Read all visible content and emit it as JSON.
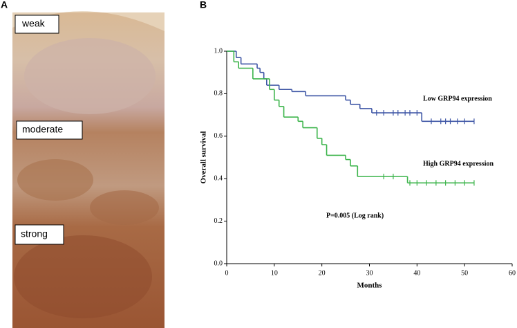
{
  "panel_labels": [
    "A",
    "B"
  ],
  "image_labels": [
    "weak",
    "moderate",
    "strong"
  ],
  "chart_data": {
    "type": "step",
    "xlabel": "Months",
    "ylabel": "Overall survival",
    "xlim": [
      0,
      60
    ],
    "xticks": [
      0,
      10,
      20,
      30,
      40,
      50,
      60
    ],
    "ylim": [
      0,
      1
    ],
    "yticks": [
      {
        "value": 0,
        "label": "0.0"
      },
      0.2,
      0.4,
      0.6,
      0.8,
      {
        "value": 1,
        "label": "1.0"
      }
    ],
    "series": [
      {
        "name": "Low GRP94 expression",
        "color": "#3d55a5",
        "x": [
          0,
          2,
          3,
          6.4,
          7,
          7.8,
          8.4,
          11,
          13.7,
          16.6,
          25,
          26,
          28,
          30.5,
          41,
          52
        ],
        "values": [
          1.0,
          0.97,
          0.94,
          0.92,
          0.9,
          0.87,
          0.84,
          0.82,
          0.81,
          0.79,
          0.77,
          0.75,
          0.73,
          0.71,
          0.67,
          0.67
        ],
        "censored": [
          31.5,
          33,
          35,
          36,
          37.5,
          38.5,
          40,
          43,
          45,
          46,
          47,
          48.5,
          50,
          52
        ]
      },
      {
        "name": "High GRP94 expression",
        "color": "#3cb44b",
        "x": [
          0,
          1.5,
          2.5,
          5.5,
          9,
          10,
          11,
          12,
          15,
          16,
          19,
          20,
          21,
          25,
          26,
          27.5,
          38,
          52
        ],
        "values": [
          1.0,
          0.95,
          0.92,
          0.87,
          0.82,
          0.77,
          0.74,
          0.69,
          0.67,
          0.64,
          0.59,
          0.56,
          0.51,
          0.49,
          0.46,
          0.41,
          0.38,
          0.38
        ],
        "censored": [
          33,
          35,
          38.5,
          40,
          42,
          44,
          46,
          48,
          50,
          52
        ]
      }
    ],
    "annotations": [
      "P=0.005 (Log rank)"
    ]
  }
}
